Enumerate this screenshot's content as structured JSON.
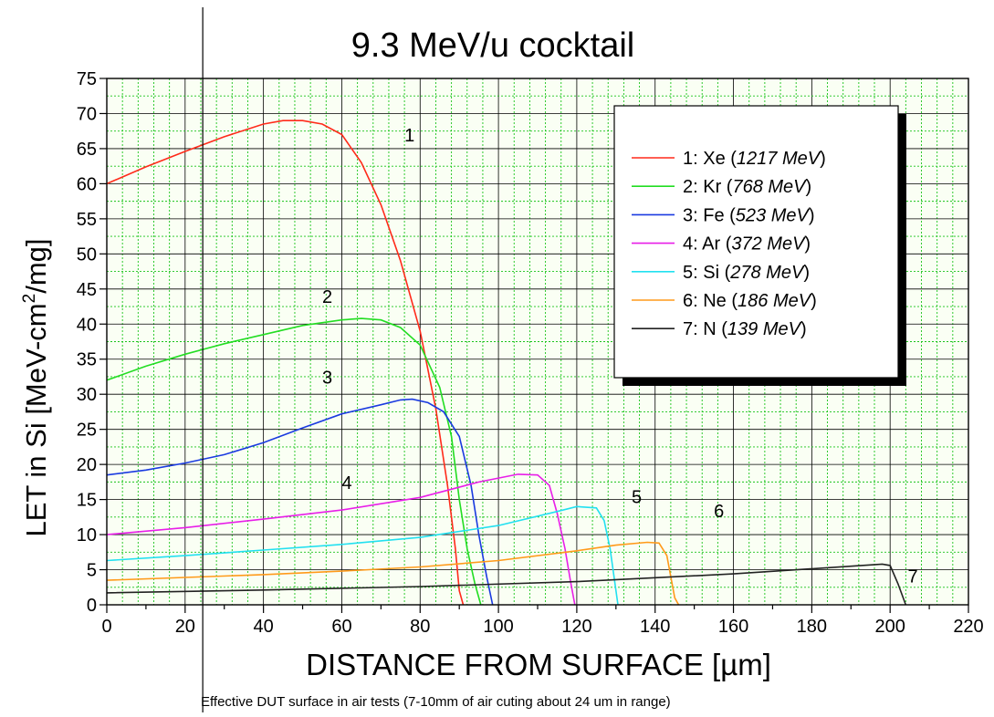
{
  "chart_data": {
    "type": "line",
    "title": "9.3 MeV/u cocktail",
    "xlabel": "DISTANCE FROM SURFACE [µm]",
    "ylabel_parts": {
      "main": "LET in Si [MeV-cm",
      "sup": "2",
      "end": "/mg]"
    },
    "xlim": [
      0,
      220
    ],
    "ylim": [
      0,
      75
    ],
    "x_ticks": [
      0,
      20,
      40,
      60,
      80,
      100,
      120,
      140,
      160,
      180,
      200,
      220
    ],
    "y_ticks": [
      0,
      5,
      10,
      15,
      20,
      25,
      30,
      35,
      40,
      45,
      50,
      55,
      60,
      65,
      70,
      75
    ],
    "grid": true,
    "legend_position": "top-right",
    "footnote": "Effective DUT surface in air tests (7-10mm of air cuting about 24 um in range)",
    "reference_line_x": 24.5,
    "series": [
      {
        "label": "1",
        "element": "1: Xe (",
        "energy": "1217 MeV",
        "close": ")",
        "color": "#ff2a1a",
        "label_pos": [
          76,
          66
        ],
        "points": [
          [
            0,
            60
          ],
          [
            10,
            62.4
          ],
          [
            20,
            64.6
          ],
          [
            30,
            66.7
          ],
          [
            40,
            68.5
          ],
          [
            45,
            69
          ],
          [
            50,
            69
          ],
          [
            55,
            68.5
          ],
          [
            60,
            67
          ],
          [
            65,
            63
          ],
          [
            70,
            57
          ],
          [
            75,
            49
          ],
          [
            80,
            39
          ],
          [
            84,
            28
          ],
          [
            87,
            17
          ],
          [
            89,
            8
          ],
          [
            90,
            2
          ],
          [
            91,
            0
          ]
        ]
      },
      {
        "label": "2",
        "element": "2: Kr (",
        "energy": "768 MeV",
        "close": ")",
        "color": "#22dd22",
        "label_pos": [
          55,
          43
        ],
        "points": [
          [
            0,
            32
          ],
          [
            10,
            34
          ],
          [
            20,
            35.7
          ],
          [
            30,
            37.2
          ],
          [
            40,
            38.5
          ],
          [
            50,
            39.8
          ],
          [
            60,
            40.6
          ],
          [
            65,
            40.8
          ],
          [
            70,
            40.6
          ],
          [
            75,
            39.5
          ],
          [
            80,
            37
          ],
          [
            85,
            31
          ],
          [
            88,
            24
          ],
          [
            90,
            15
          ],
          [
            92,
            8
          ],
          [
            94,
            3
          ],
          [
            95.5,
            0
          ]
        ]
      },
      {
        "label": "3",
        "element": "3: Fe (",
        "energy": "523 MeV",
        "close": ")",
        "color": "#1a3ae0",
        "label_pos": [
          55,
          31.5
        ],
        "points": [
          [
            0,
            18.5
          ],
          [
            10,
            19.2
          ],
          [
            20,
            20.2
          ],
          [
            30,
            21.4
          ],
          [
            40,
            23.1
          ],
          [
            50,
            25.2
          ],
          [
            60,
            27.2
          ],
          [
            70,
            28.5
          ],
          [
            75,
            29.2
          ],
          [
            78,
            29.3
          ],
          [
            82,
            28.8
          ],
          [
            86,
            27.5
          ],
          [
            90,
            24
          ],
          [
            93,
            17
          ],
          [
            95,
            10
          ],
          [
            97,
            4
          ],
          [
            98.5,
            0
          ]
        ]
      },
      {
        "label": "4",
        "element": "4: Ar (",
        "energy": "372 MeV",
        "close": ")",
        "color": "#e81ee8",
        "label_pos": [
          60,
          16.5
        ],
        "points": [
          [
            0,
            10
          ],
          [
            20,
            11
          ],
          [
            40,
            12.2
          ],
          [
            60,
            13.5
          ],
          [
            80,
            15.3
          ],
          [
            95,
            17.5
          ],
          [
            105,
            18.6
          ],
          [
            110,
            18.5
          ],
          [
            113,
            17
          ],
          [
            115,
            13
          ],
          [
            117,
            8
          ],
          [
            118.5,
            3
          ],
          [
            119.5,
            0
          ]
        ]
      },
      {
        "label": "5",
        "element": "5: Si (",
        "energy": "278 MeV",
        "close": ")",
        "color": "#22e0f0",
        "label_pos": [
          134,
          14.5
        ],
        "points": [
          [
            0,
            6.3
          ],
          [
            20,
            7.0
          ],
          [
            40,
            7.8
          ],
          [
            60,
            8.6
          ],
          [
            80,
            9.6
          ],
          [
            100,
            11.3
          ],
          [
            115,
            13.3
          ],
          [
            120,
            14
          ],
          [
            125,
            13.8
          ],
          [
            127,
            12
          ],
          [
            128.5,
            8
          ],
          [
            129.5,
            4
          ],
          [
            130.5,
            0
          ]
        ]
      },
      {
        "label": "6",
        "element": "6: Ne (",
        "energy": "186 MeV",
        "close": ")",
        "color": "#ff9a1a",
        "label_pos": [
          155,
          12.5
        ],
        "points": [
          [
            0,
            3.5
          ],
          [
            20,
            3.9
          ],
          [
            40,
            4.3
          ],
          [
            60,
            4.8
          ],
          [
            80,
            5.4
          ],
          [
            100,
            6.3
          ],
          [
            120,
            7.7
          ],
          [
            130,
            8.5
          ],
          [
            138,
            8.9
          ],
          [
            141,
            8.8
          ],
          [
            143,
            7
          ],
          [
            144,
            4
          ],
          [
            145,
            1
          ],
          [
            146,
            0
          ]
        ]
      },
      {
        "label": "7",
        "element": "7: N (",
        "energy": "139 MeV",
        "close": ")",
        "color": "#222222",
        "label_pos": [
          204.5,
          3.2
        ],
        "points": [
          [
            0,
            1.7
          ],
          [
            40,
            2.1
          ],
          [
            80,
            2.6
          ],
          [
            120,
            3.3
          ],
          [
            160,
            4.4
          ],
          [
            190,
            5.5
          ],
          [
            198,
            5.8
          ],
          [
            200,
            5.6
          ],
          [
            202,
            3
          ],
          [
            204,
            0
          ]
        ]
      }
    ]
  }
}
